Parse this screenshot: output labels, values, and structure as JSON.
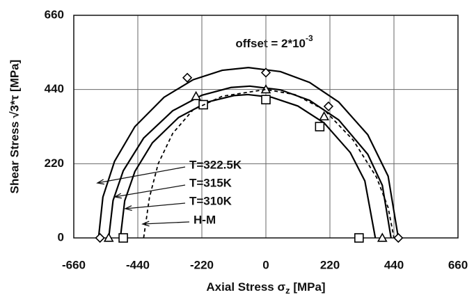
{
  "chart_data": {
    "type": "line",
    "annotation": {
      "text": "offset = 2*10",
      "sup": "-3"
    },
    "x_label": [
      "Axial Stress σ",
      "z",
      " [MPa]"
    ],
    "y_label": "Shear Stress √3*τ [MPa]",
    "xlim": [
      -660,
      660
    ],
    "ylim": [
      0,
      660
    ],
    "xticks": [
      -660,
      -440,
      -220,
      0,
      220,
      440,
      660
    ],
    "yticks": [
      0,
      220,
      440,
      660
    ],
    "grid": true,
    "series": [
      {
        "name": "T=322.5K",
        "color": "#000000",
        "marker": "diamond",
        "dash": false,
        "x": [
          -575,
          -560,
          -520,
          -450,
          -350,
          -250,
          -150,
          -60,
          50,
          150,
          250,
          350,
          420,
          455
        ],
        "values": [
          0,
          121,
          227,
          330,
          417,
          469,
          497,
          505,
          493,
          461,
          403,
          306,
          183,
          0
        ],
        "marker_x": [
          -570,
          -270,
          0,
          215,
          455
        ],
        "marker_values": [
          0,
          475,
          490,
          390,
          0
        ]
      },
      {
        "name": "T=315K",
        "color": "#000000",
        "marker": "triangle",
        "dash": false,
        "x": [
          -540,
          -525,
          -490,
          -420,
          -320,
          -220,
          -120,
          -55,
          50,
          150,
          250,
          350,
          400,
          430
        ],
        "values": [
          0,
          111,
          199,
          296,
          377,
          423,
          446,
          450,
          439,
          408,
          350,
          248,
          156,
          0
        ],
        "marker_x": [
          -540,
          -240,
          0,
          200,
          400
        ],
        "marker_values": [
          0,
          420,
          440,
          360,
          0
        ]
      },
      {
        "name": "T=310K",
        "color": "#000000",
        "marker": "square",
        "dash": false,
        "x": [
          -500,
          -485,
          -450,
          -390,
          -300,
          -200,
          -110,
          -62,
          20,
          110,
          200,
          290,
          340,
          376
        ],
        "values": [
          0,
          110,
          197,
          282,
          357,
          403,
          422,
          425,
          417,
          391,
          341,
          253,
          169,
          0
        ],
        "marker_x": [
          -490,
          -215,
          0,
          185,
          320
        ],
        "marker_values": [
          0,
          395,
          410,
          330,
          0
        ]
      },
      {
        "name": "H-M",
        "color": "#000000",
        "marker": null,
        "dash": true,
        "x": [
          -420,
          -400,
          -370,
          -320,
          -250,
          -150,
          0,
          100,
          200,
          300,
          380,
          420,
          440
        ],
        "values": [
          0,
          120,
          220,
          310,
          380,
          420,
          440,
          425,
          380,
          290,
          180,
          90,
          0
        ],
        "marker_x": [],
        "marker_values": []
      }
    ]
  }
}
